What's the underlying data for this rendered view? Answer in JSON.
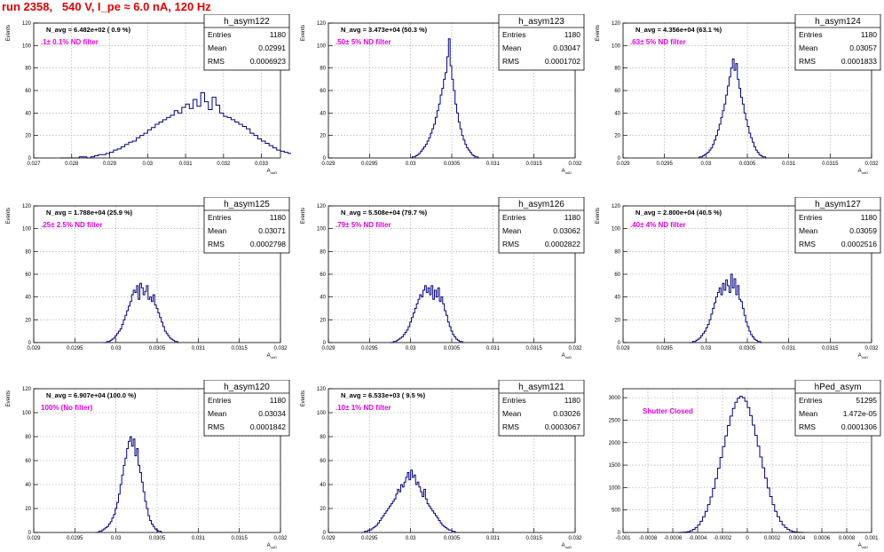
{
  "run_title": "run 2358,   540 V, I_pe ≈ 6.0 nA, 120 Hz",
  "colors": {
    "hist_line": "#00007f",
    "grid": "#a0a0a0",
    "annotation": "#e000e0",
    "title": "#e00000",
    "navg": "#000000"
  },
  "chart_data": [
    {
      "type": "histogram",
      "name": "h_asym122",
      "stats": {
        "entries_label": "Entries",
        "entries": "1180",
        "mean_label": "Mean",
        "mean": "0.02991",
        "rms_label": "RMS",
        "rms": "0.0006923"
      },
      "navg": "N_avg = 6.482e+02 ( 0.9 %)",
      "annotation": ".1± 0.1% ND filter",
      "ylabel": "Events",
      "xlabel": "A_uuD",
      "xlim": [
        0.027,
        0.0335
      ],
      "ylim": [
        0,
        120
      ],
      "xticks": [
        0.027,
        0.028,
        0.029,
        0.03,
        0.031,
        0.032,
        0.033
      ],
      "xtick_labels": [
        "0.027",
        "0.028",
        "0.029",
        "0.03",
        "0.031",
        "0.032",
        "0.033"
      ],
      "yticks": [
        0,
        20,
        40,
        60,
        80,
        100,
        120
      ],
      "ytick_labels": [
        "0",
        "20",
        "40",
        "60",
        "80",
        "100",
        "120"
      ],
      "x_start": 0.0277,
      "bin_width": 0.0001,
      "values": [
        0,
        0,
        0,
        0,
        0,
        1,
        1,
        0,
        1,
        2,
        3,
        3,
        4,
        5,
        7,
        8,
        10,
        12,
        14,
        15,
        18,
        20,
        22,
        25,
        27,
        30,
        32,
        34,
        36,
        38,
        42,
        40,
        45,
        48,
        44,
        52,
        46,
        58,
        50,
        43,
        54,
        47,
        40,
        37,
        36,
        34,
        32,
        30,
        28,
        26,
        22,
        20,
        17,
        15,
        13,
        11,
        9,
        7,
        6,
        5,
        4,
        3,
        2,
        2,
        1,
        1,
        1,
        0,
        0,
        0
      ]
    },
    {
      "type": "histogram",
      "name": "h_asym123",
      "stats": {
        "entries_label": "Entries",
        "entries": "1180",
        "mean_label": "Mean",
        "mean": "0.03047",
        "rms_label": "RMS",
        "rms": "0.0001702"
      },
      "navg": "N_avg = 3.473e+04 (50.3 %)",
      "annotation": ".50± 5% ND filter",
      "ylabel": "Events",
      "xlabel": "A_uuD",
      "xlim": [
        0.029,
        0.032
      ],
      "ylim": [
        0,
        120
      ],
      "xticks": [
        0.029,
        0.0295,
        0.03,
        0.0305,
        0.031,
        0.0315,
        0.032
      ],
      "xtick_labels": [
        "0.029",
        "0.0295",
        "0.03",
        "0.0305",
        "0.031",
        "0.0315",
        "0.032"
      ],
      "yticks": [
        0,
        20,
        40,
        60,
        80,
        100,
        120
      ],
      "ytick_labels": [
        "0",
        "20",
        "40",
        "60",
        "80",
        "100",
        "120"
      ],
      "x_start": 0.03,
      "bin_width": 2e-05,
      "values": [
        0,
        1,
        1,
        2,
        3,
        4,
        6,
        8,
        10,
        12,
        15,
        18,
        22,
        26,
        30,
        36,
        42,
        48,
        56,
        62,
        70,
        76,
        90,
        106,
        82,
        70,
        60,
        48,
        40,
        32,
        26,
        20,
        16,
        12,
        9,
        7,
        5,
        3,
        2,
        1,
        1,
        0
      ]
    },
    {
      "type": "histogram",
      "name": "h_asym124",
      "stats": {
        "entries_label": "Entries",
        "entries": "1180",
        "mean_label": "Mean",
        "mean": "0.03057",
        "rms_label": "RMS",
        "rms": "0.0001833"
      },
      "navg": "N_avg = 4.356e+04 (63.1 %)",
      "annotation": ".63± 5% ND filter",
      "ylabel": "Events",
      "xlabel": "A_uuD",
      "xlim": [
        0.029,
        0.032
      ],
      "ylim": [
        0,
        120
      ],
      "xticks": [
        0.029,
        0.0295,
        0.03,
        0.0305,
        0.031,
        0.0315,
        0.032
      ],
      "xtick_labels": [
        "0.029",
        "0.0295",
        "0.03",
        "0.0305",
        "0.031",
        "0.0315",
        "0.032"
      ],
      "yticks": [
        0,
        20,
        40,
        60,
        80,
        100,
        120
      ],
      "ytick_labels": [
        "0",
        "20",
        "40",
        "60",
        "80",
        "100",
        "120"
      ],
      "x_start": 0.0299,
      "bin_width": 2e-05,
      "values": [
        0,
        1,
        1,
        2,
        3,
        4,
        5,
        7,
        9,
        12,
        16,
        20,
        25,
        30,
        36,
        42,
        48,
        56,
        64,
        72,
        80,
        88,
        78,
        84,
        70,
        62,
        54,
        48,
        40,
        34,
        28,
        22,
        18,
        14,
        10,
        7,
        5,
        3,
        2,
        1,
        1,
        0
      ]
    },
    {
      "type": "histogram",
      "name": "h_asym125",
      "stats": {
        "entries_label": "Entries",
        "entries": "1180",
        "mean_label": "Mean",
        "mean": "0.03071",
        "rms_label": "RMS",
        "rms": "0.0002798"
      },
      "navg": "N_avg = 1.788e+04 (25.9 %)",
      "annotation": ".25± 2.5% ND filter",
      "ylabel": "Events",
      "xlabel": "A_uuD",
      "xlim": [
        0.029,
        0.032
      ],
      "ylim": [
        0,
        120
      ],
      "xticks": [
        0.029,
        0.0295,
        0.03,
        0.0305,
        0.031,
        0.0315,
        0.032
      ],
      "xtick_labels": [
        "0.029",
        "0.0295",
        "0.03",
        "0.0305",
        "0.031",
        "0.0315",
        "0.032"
      ],
      "yticks": [
        0,
        20,
        40,
        60,
        80,
        100,
        120
      ],
      "ytick_labels": [
        "0",
        "20",
        "40",
        "60",
        "80",
        "100",
        "120"
      ],
      "x_start": 0.02985,
      "bin_width": 2e-05,
      "values": [
        0,
        0,
        1,
        1,
        2,
        3,
        4,
        6,
        8,
        10,
        12,
        16,
        20,
        24,
        28,
        32,
        36,
        42,
        46,
        44,
        50,
        38,
        52,
        48,
        42,
        45,
        50,
        38,
        40,
        36,
        42,
        33,
        30,
        26,
        22,
        18,
        14,
        10,
        8,
        6,
        4,
        3,
        2,
        1,
        1,
        0
      ]
    },
    {
      "type": "histogram",
      "name": "h_asym126",
      "stats": {
        "entries_label": "Entries",
        "entries": "1180",
        "mean_label": "Mean",
        "mean": "0.03062",
        "rms_label": "RMS",
        "rms": "0.0002822"
      },
      "navg": "N_avg = 5.508e+04 (79.7 %)",
      "annotation": ".79± 5% ND filter",
      "ylabel": "Events",
      "xlabel": "A_uuD",
      "xlim": [
        0.029,
        0.032
      ],
      "ylim": [
        0,
        120
      ],
      "xticks": [
        0.029,
        0.0295,
        0.03,
        0.0305,
        0.031,
        0.0315,
        0.032
      ],
      "xtick_labels": [
        "0.029",
        "0.0295",
        "0.03",
        "0.0305",
        "0.031",
        "0.0315",
        "0.032"
      ],
      "yticks": [
        0,
        20,
        40,
        60,
        80,
        100,
        120
      ],
      "ytick_labels": [
        "0",
        "20",
        "40",
        "60",
        "80",
        "100",
        "120"
      ],
      "x_start": 0.02975,
      "bin_width": 2e-05,
      "values": [
        0,
        0,
        1,
        1,
        2,
        3,
        4,
        5,
        7,
        9,
        11,
        14,
        18,
        22,
        26,
        30,
        34,
        38,
        42,
        40,
        46,
        50,
        44,
        48,
        42,
        50,
        38,
        46,
        40,
        48,
        36,
        40,
        34,
        28,
        24,
        18,
        14,
        10,
        7,
        5,
        3,
        2,
        1,
        1,
        0
      ]
    },
    {
      "type": "histogram",
      "name": "h_asym127",
      "stats": {
        "entries_label": "Entries",
        "entries": "1180",
        "mean_label": "Mean",
        "mean": "0.03059",
        "rms_label": "RMS",
        "rms": "0.0002516"
      },
      "navg": "N_avg = 2.800e+04 (40.5 %)",
      "annotation": ".40± 4% ND filter",
      "ylabel": "Events",
      "xlabel": "A_uuD",
      "xlim": [
        0.029,
        0.032
      ],
      "ylim": [
        0,
        120
      ],
      "xticks": [
        0.029,
        0.0295,
        0.03,
        0.0305,
        0.031,
        0.0315,
        0.032
      ],
      "xtick_labels": [
        "0.029",
        "0.0295",
        "0.03",
        "0.0305",
        "0.031",
        "0.0315",
        "0.032"
      ],
      "yticks": [
        0,
        20,
        40,
        60,
        80,
        100,
        120
      ],
      "ytick_labels": [
        "0",
        "20",
        "40",
        "60",
        "80",
        "100",
        "120"
      ],
      "x_start": 0.0298,
      "bin_width": 2e-05,
      "values": [
        0,
        0,
        1,
        1,
        2,
        3,
        4,
        6,
        8,
        10,
        13,
        16,
        20,
        25,
        30,
        35,
        40,
        44,
        48,
        42,
        52,
        46,
        55,
        50,
        44,
        60,
        48,
        56,
        42,
        50,
        38,
        36,
        30,
        24,
        18,
        14,
        10,
        7,
        5,
        3,
        2,
        1,
        1,
        0
      ]
    },
    {
      "type": "histogram",
      "name": "h_asym120",
      "stats": {
        "entries_label": "Entries",
        "entries": "1180",
        "mean_label": "Mean",
        "mean": "0.03034",
        "rms_label": "RMS",
        "rms": "0.0001842"
      },
      "navg": "N_avg = 6.907e+04 (100.0 %)",
      "annotation": "100% (No filter)",
      "ylabel": "Events",
      "xlabel": "A_uuD",
      "xlim": [
        0.029,
        0.032
      ],
      "ylim": [
        0,
        120
      ],
      "xticks": [
        0.029,
        0.0295,
        0.03,
        0.0305,
        0.031,
        0.0315,
        0.032
      ],
      "xtick_labels": [
        "0.029",
        "0.0295",
        "0.03",
        "0.0305",
        "0.031",
        "0.0315",
        "0.032"
      ],
      "yticks": [
        0,
        20,
        40,
        60,
        80,
        100,
        120
      ],
      "ytick_labels": [
        "0",
        "20",
        "40",
        "60",
        "80",
        "100",
        "120"
      ],
      "x_start": 0.02975,
      "bin_width": 2e-05,
      "values": [
        0,
        0,
        1,
        1,
        2,
        3,
        4,
        5,
        7,
        9,
        12,
        15,
        20,
        25,
        32,
        40,
        48,
        56,
        62,
        70,
        76,
        80,
        72,
        78,
        64,
        70,
        56,
        50,
        42,
        34,
        26,
        20,
        14,
        10,
        7,
        5,
        3,
        2,
        1,
        1,
        0
      ]
    },
    {
      "type": "histogram",
      "name": "h_asym121",
      "stats": {
        "entries_label": "Entries",
        "entries": "1180",
        "mean_label": "Mean",
        "mean": "0.03026",
        "rms_label": "RMS",
        "rms": "0.0003067"
      },
      "navg": "N_avg = 6.533e+03 ( 9.5 %)",
      "annotation": ".10± 1% ND filter",
      "ylabel": "Events",
      "xlabel": "A_uuD",
      "xlim": [
        0.029,
        0.032
      ],
      "ylim": [
        0,
        120
      ],
      "xticks": [
        0.029,
        0.0295,
        0.03,
        0.0305,
        0.031,
        0.0315,
        0.032
      ],
      "xtick_labels": [
        "0.029",
        "0.0295",
        "0.03",
        "0.0305",
        "0.031",
        "0.0315",
        "0.032"
      ],
      "yticks": [
        0,
        20,
        40,
        60,
        80,
        100,
        120
      ],
      "ytick_labels": [
        "0",
        "20",
        "40",
        "60",
        "80",
        "100",
        "120"
      ],
      "x_start": 0.0294,
      "bin_width": 2e-05,
      "values": [
        0,
        0,
        1,
        1,
        2,
        2,
        3,
        4,
        5,
        6,
        8,
        10,
        12,
        14,
        16,
        18,
        20,
        22,
        24,
        26,
        28,
        32,
        36,
        34,
        40,
        38,
        42,
        46,
        50,
        44,
        52,
        46,
        48,
        40,
        42,
        38,
        34,
        30,
        36,
        28,
        24,
        22,
        20,
        18,
        16,
        14,
        12,
        10,
        8,
        6,
        5,
        4,
        3,
        2,
        2,
        1,
        1,
        0
      ]
    },
    {
      "type": "histogram",
      "name": "hPed_asym",
      "stats": {
        "entries_label": "Entries",
        "entries": "51295",
        "mean_label": "Mean",
        "mean": "1.472e-05",
        "rms_label": "RMS",
        "rms": "0.0001306"
      },
      "navg": "",
      "annotation": "Shutter Closed",
      "ylabel": "",
      "xlabel": "A_uuD",
      "xlim": [
        -0.001,
        0.001
      ],
      "ylim": [
        0,
        3200
      ],
      "xticks": [
        -0.001,
        -0.0008,
        -0.0006,
        -0.0004,
        -0.0002,
        0,
        0.0002,
        0.0004,
        0.0006,
        0.0008,
        0.001
      ],
      "xtick_labels": [
        "-0.001",
        "-0.0008",
        "-0.0006",
        "-0.0004",
        "-0.0002",
        "0",
        "0.0002",
        "0.0004",
        "0.0006",
        "0.0008",
        "0.001"
      ],
      "yticks": [
        0,
        500,
        1000,
        1500,
        2000,
        2500,
        3000
      ],
      "ytick_labels": [
        "0",
        "500",
        "1000",
        "1500",
        "2000",
        "2500",
        "3000"
      ],
      "x_start": -0.00056,
      "bin_width": 2e-05,
      "values": [
        0,
        2,
        5,
        10,
        20,
        40,
        70,
        110,
        170,
        250,
        350,
        470,
        620,
        790,
        980,
        1200,
        1430,
        1670,
        1910,
        2150,
        2380,
        2590,
        2760,
        2900,
        2990,
        3030,
        3000,
        2920,
        2780,
        2600,
        2390,
        2160,
        1920,
        1680,
        1440,
        1210,
        990,
        800,
        620,
        470,
        350,
        250,
        170,
        110,
        70,
        40,
        20,
        10,
        5,
        2,
        0
      ]
    }
  ]
}
